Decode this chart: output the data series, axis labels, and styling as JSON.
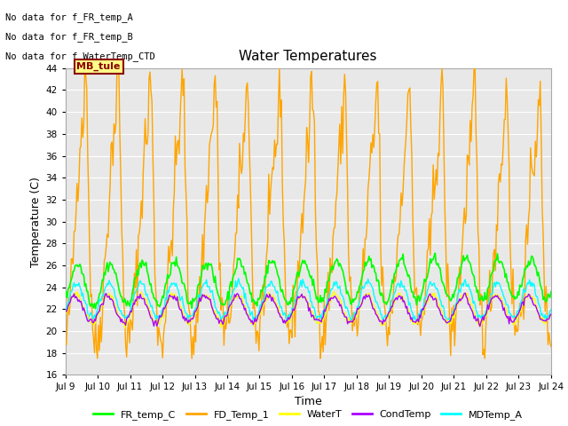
{
  "title": "Water Temperatures",
  "xlabel": "Time",
  "ylabel": "Temperature (C)",
  "ylim": [
    16,
    44
  ],
  "yticks": [
    16,
    18,
    20,
    22,
    24,
    26,
    28,
    30,
    32,
    34,
    36,
    38,
    40,
    42,
    44
  ],
  "bg_color": "#e8e8e8",
  "fig_color": "#ffffff",
  "annotations_text": [
    "No data for f_FR_temp_A",
    "No data for f_FR_temp_B",
    "No data for f_WaterTemp_CTD"
  ],
  "annotation_box_label": "MB_tule",
  "legend_entries": [
    "FR_temp_C",
    "FD_Temp_1",
    "WaterT",
    "CondTemp",
    "MDTemp_A"
  ],
  "legend_colors": [
    "#00ff00",
    "#ffa500",
    "#ffff00",
    "#aa00ff",
    "#00ffff"
  ],
  "line_colors": {
    "FR_temp_C": "#00ff00",
    "FD_Temp_1": "#ffa500",
    "WaterT": "#ffff00",
    "CondTemp": "#aa00ff",
    "MDTemp_A": "#00ffff"
  },
  "xticklabels": [
    "Jul 9",
    "Jul 10",
    "Jul 11",
    "Jul 12",
    "Jul 13",
    "Jul 14",
    "Jul 15",
    "Jul 16",
    "Jul 17",
    "Jul 18",
    "Jul 19",
    "Jul 20",
    "Jul 21",
    "Jul 22",
    "Jul 23",
    "Jul 24"
  ],
  "num_points": 500
}
